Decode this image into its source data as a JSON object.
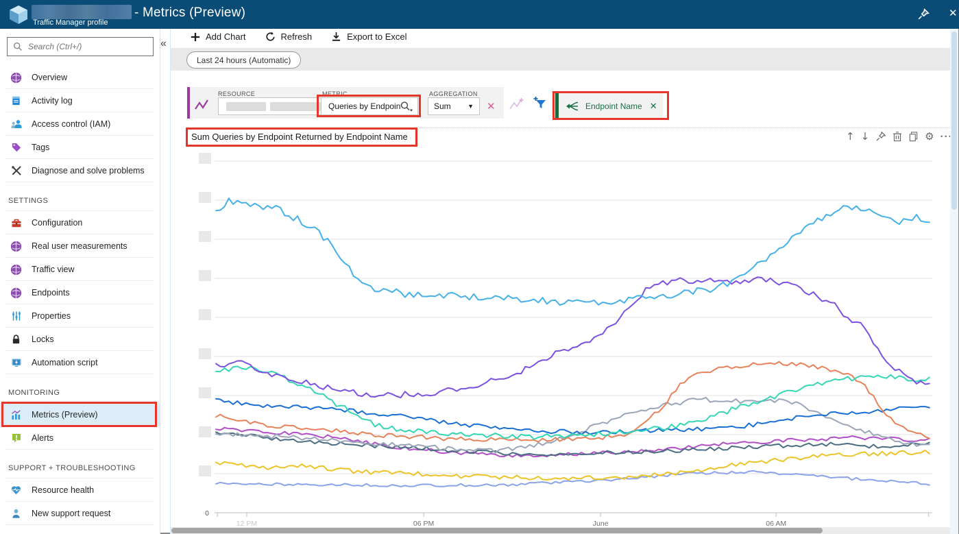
{
  "window": {
    "resource_name": "[redacted]",
    "resource_type": "Traffic Manager profile",
    "page_title": "- Metrics (Preview)"
  },
  "sidebar": {
    "search": {
      "placeholder": "Search (Ctrl+/)"
    },
    "collapse_glyph": "«",
    "entries": [
      {
        "kind": "item",
        "icon": "globe-purple",
        "label": "Overview"
      },
      {
        "kind": "item",
        "icon": "activity-log",
        "label": "Activity log"
      },
      {
        "kind": "item",
        "icon": "access-control",
        "label": "Access control (IAM)"
      },
      {
        "kind": "item",
        "icon": "tag",
        "label": "Tags"
      },
      {
        "kind": "item",
        "icon": "diagnose",
        "label": "Diagnose and solve problems"
      },
      {
        "kind": "header",
        "label": "SETTINGS"
      },
      {
        "kind": "item",
        "icon": "toolbox",
        "label": "Configuration"
      },
      {
        "kind": "item",
        "icon": "globe-purple",
        "label": "Real user measurements"
      },
      {
        "kind": "item",
        "icon": "globe-purple",
        "label": "Traffic view"
      },
      {
        "kind": "item",
        "icon": "globe-purple",
        "label": "Endpoints"
      },
      {
        "kind": "item",
        "icon": "sliders",
        "label": "Properties"
      },
      {
        "kind": "item",
        "icon": "lock",
        "label": "Locks"
      },
      {
        "kind": "item",
        "icon": "automation",
        "label": "Automation script"
      },
      {
        "kind": "header",
        "label": "MONITORING"
      },
      {
        "kind": "item",
        "icon": "metrics",
        "label": "Metrics (Preview)",
        "selected": true,
        "annotated": true
      },
      {
        "kind": "item",
        "icon": "alert",
        "label": "Alerts"
      },
      {
        "kind": "header",
        "label": "SUPPORT + TROUBLESHOOTING"
      },
      {
        "kind": "item",
        "icon": "health",
        "label": "Resource health"
      },
      {
        "kind": "item",
        "icon": "support",
        "label": "New support request"
      }
    ]
  },
  "toolbar": {
    "buttons": [
      {
        "icon": "plus",
        "label": "Add Chart"
      },
      {
        "icon": "refresh",
        "label": "Refresh"
      },
      {
        "icon": "export",
        "label": "Export to Excel"
      }
    ]
  },
  "time_range": {
    "label": "Last 24 hours (Automatic)"
  },
  "metric_builder": {
    "resource": {
      "label": "RESOURCE",
      "value_redacted": true
    },
    "metric": {
      "label": "METRIC",
      "value": "Queries by Endpoint...",
      "annotated": true
    },
    "aggregation": {
      "label": "AGGREGATION",
      "value": "Sum"
    },
    "remove_glyph": "✕",
    "grouping": {
      "label": "Endpoint Name",
      "remove_glyph": "✕",
      "annotated": true
    }
  },
  "chart_header": {
    "title": "Sum Queries by Endpoint Returned by Endpoint Name",
    "annotated": true,
    "actions": [
      "move-up",
      "move-down",
      "pin",
      "delete",
      "copy",
      "settings",
      "more"
    ]
  },
  "chart_data": {
    "type": "line",
    "title": "Sum Queries by Endpoint Returned by Endpoint Name",
    "x_axis": {
      "ticks": [
        {
          "t": 0.002,
          "label": ""
        },
        {
          "t": 0.043,
          "label": "12 PM",
          "muted": true
        },
        {
          "t": 0.29,
          "label": "06 PM"
        },
        {
          "t": 0.537,
          "label": "June"
        },
        {
          "t": 0.782,
          "label": "06 AM"
        },
        {
          "t": 0.995,
          "label": ""
        }
      ],
      "range": "Last 24 hours"
    },
    "y_axis": {
      "origin_label": "0",
      "gridline_count": 9,
      "tick_labels_redacted": true,
      "note": "series values below are in gridline units (0 = baseline)"
    },
    "legend": "none",
    "series": [
      {
        "name": "light-blue",
        "color": "#45b1e8",
        "wiggle": 0.09,
        "points": [
          [
            0,
            7.68
          ],
          [
            0.019,
            8.0
          ],
          [
            0.048,
            7.85
          ],
          [
            0.081,
            7.8
          ],
          [
            0.105,
            7.6
          ],
          [
            0.134,
            7.3
          ],
          [
            0.163,
            6.85
          ],
          [
            0.191,
            6.1
          ],
          [
            0.22,
            5.75
          ],
          [
            0.263,
            5.6
          ],
          [
            0.321,
            5.55
          ],
          [
            0.388,
            5.5
          ],
          [
            0.455,
            5.42
          ],
          [
            0.521,
            5.35
          ],
          [
            0.588,
            5.5
          ],
          [
            0.646,
            5.6
          ],
          [
            0.703,
            5.75
          ],
          [
            0.751,
            6.3
          ],
          [
            0.799,
            6.95
          ],
          [
            0.842,
            7.5
          ],
          [
            0.876,
            7.8
          ],
          [
            0.914,
            7.72
          ],
          [
            0.947,
            7.42
          ],
          [
            0.976,
            7.55
          ],
          [
            1,
            7.45
          ]
        ]
      },
      {
        "name": "violet",
        "color": "#7b52e0",
        "wiggle": 0.08,
        "points": [
          [
            0,
            3.74
          ],
          [
            0.033,
            3.85
          ],
          [
            0.077,
            3.55
          ],
          [
            0.12,
            3.35
          ],
          [
            0.167,
            3.15
          ],
          [
            0.223,
            2.98
          ],
          [
            0.292,
            3.05
          ],
          [
            0.359,
            3.25
          ],
          [
            0.421,
            3.55
          ],
          [
            0.464,
            4.0
          ],
          [
            0.519,
            4.35
          ],
          [
            0.565,
            5.0
          ],
          [
            0.608,
            5.85
          ],
          [
            0.655,
            5.95
          ],
          [
            0.713,
            5.9
          ],
          [
            0.761,
            6.0
          ],
          [
            0.804,
            5.8
          ],
          [
            0.832,
            5.6
          ],
          [
            0.861,
            5.35
          ],
          [
            0.885,
            4.95
          ],
          [
            0.909,
            4.7
          ],
          [
            0.933,
            3.9
          ],
          [
            0.957,
            3.55
          ],
          [
            0.976,
            3.3
          ],
          [
            1,
            3.4
          ]
        ]
      },
      {
        "name": "turquoise",
        "color": "#35d6b4",
        "wiggle": 0.07,
        "points": [
          [
            0,
            3.65
          ],
          [
            0.033,
            3.72
          ],
          [
            0.081,
            3.6
          ],
          [
            0.115,
            3.3
          ],
          [
            0.148,
            3.0
          ],
          [
            0.172,
            2.75
          ],
          [
            0.196,
            2.5
          ],
          [
            0.23,
            2.2
          ],
          [
            0.297,
            2.05
          ],
          [
            0.368,
            1.98
          ],
          [
            0.445,
            1.93
          ],
          [
            0.521,
            2.0
          ],
          [
            0.598,
            2.1
          ],
          [
            0.665,
            2.3
          ],
          [
            0.732,
            2.7
          ],
          [
            0.799,
            3.1
          ],
          [
            0.861,
            3.4
          ],
          [
            0.923,
            3.5
          ],
          [
            0.971,
            3.42
          ],
          [
            1,
            3.45
          ]
        ]
      },
      {
        "name": "orange",
        "color": "#e8825a",
        "wiggle": 0.06,
        "points": [
          [
            0,
            2.5
          ],
          [
            0.038,
            2.32
          ],
          [
            0.1,
            2.2
          ],
          [
            0.158,
            2.12
          ],
          [
            0.225,
            1.98
          ],
          [
            0.321,
            1.9
          ],
          [
            0.416,
            1.86
          ],
          [
            0.512,
            1.9
          ],
          [
            0.579,
            1.98
          ],
          [
            0.617,
            2.6
          ],
          [
            0.655,
            3.4
          ],
          [
            0.699,
            3.7
          ],
          [
            0.746,
            3.8
          ],
          [
            0.794,
            3.82
          ],
          [
            0.842,
            3.72
          ],
          [
            0.876,
            3.6
          ],
          [
            0.902,
            3.35
          ],
          [
            0.928,
            2.7
          ],
          [
            0.952,
            2.25
          ],
          [
            0.976,
            2.0
          ],
          [
            1,
            1.95
          ]
        ]
      },
      {
        "name": "royal-blue",
        "color": "#1a6fd4",
        "wiggle": 0.06,
        "points": [
          [
            0,
            2.86
          ],
          [
            0.062,
            2.74
          ],
          [
            0.129,
            2.68
          ],
          [
            0.196,
            2.6
          ],
          [
            0.273,
            2.44
          ],
          [
            0.349,
            2.26
          ],
          [
            0.426,
            2.12
          ],
          [
            0.512,
            2.06
          ],
          [
            0.608,
            2.1
          ],
          [
            0.703,
            2.16
          ],
          [
            0.77,
            2.28
          ],
          [
            0.828,
            2.48
          ],
          [
            0.885,
            2.56
          ],
          [
            0.943,
            2.64
          ],
          [
            1,
            2.7
          ]
        ]
      },
      {
        "name": "light-gray",
        "color": "#9aa6b8",
        "wiggle": 0.06,
        "points": [
          [
            0,
            2.02
          ],
          [
            0.1,
            1.94
          ],
          [
            0.206,
            1.8
          ],
          [
            0.311,
            1.66
          ],
          [
            0.388,
            1.58
          ],
          [
            0.464,
            1.78
          ],
          [
            0.541,
            2.3
          ],
          [
            0.608,
            2.7
          ],
          [
            0.675,
            2.9
          ],
          [
            0.742,
            2.85
          ],
          [
            0.799,
            2.86
          ],
          [
            0.856,
            2.45
          ],
          [
            0.904,
            2.1
          ],
          [
            0.952,
            1.8
          ],
          [
            1,
            1.72
          ]
        ]
      },
      {
        "name": "slate",
        "color": "#4a6d82",
        "wiggle": 0.05,
        "points": [
          [
            0,
            2.06
          ],
          [
            0.081,
            1.9
          ],
          [
            0.177,
            1.76
          ],
          [
            0.273,
            1.66
          ],
          [
            0.368,
            1.55
          ],
          [
            0.464,
            1.5
          ],
          [
            0.56,
            1.55
          ],
          [
            0.655,
            1.6
          ],
          [
            0.751,
            1.68
          ],
          [
            0.847,
            1.76
          ],
          [
            0.923,
            1.7
          ],
          [
            1,
            1.78
          ]
        ]
      },
      {
        "name": "magenta",
        "color": "#b14fc8",
        "wiggle": 0.05,
        "points": [
          [
            0,
            2.16
          ],
          [
            0.081,
            2.05
          ],
          [
            0.158,
            1.95
          ],
          [
            0.234,
            1.72
          ],
          [
            0.321,
            1.55
          ],
          [
            0.416,
            1.46
          ],
          [
            0.512,
            1.5
          ],
          [
            0.608,
            1.6
          ],
          [
            0.703,
            1.75
          ],
          [
            0.799,
            1.85
          ],
          [
            0.895,
            1.92
          ],
          [
            1,
            1.85
          ]
        ]
      },
      {
        "name": "gold",
        "color": "#ecc428",
        "wiggle": 0.06,
        "points": [
          [
            0,
            1.3
          ],
          [
            0.062,
            1.14
          ],
          [
            0.129,
            1.2
          ],
          [
            0.196,
            1.05
          ],
          [
            0.273,
            1.0
          ],
          [
            0.368,
            0.92
          ],
          [
            0.464,
            0.88
          ],
          [
            0.56,
            0.9
          ],
          [
            0.655,
            1.05
          ],
          [
            0.751,
            1.3
          ],
          [
            0.847,
            1.45
          ],
          [
            0.923,
            1.52
          ],
          [
            1,
            1.55
          ]
        ]
      },
      {
        "name": "periwinkle",
        "color": "#8ba3e8",
        "wiggle": 0.035,
        "points": [
          [
            0,
            0.76
          ],
          [
            0.129,
            0.72
          ],
          [
            0.273,
            0.7
          ],
          [
            0.416,
            0.72
          ],
          [
            0.56,
            0.85
          ],
          [
            0.655,
            1.0
          ],
          [
            0.751,
            1.05
          ],
          [
            0.828,
            0.95
          ],
          [
            0.904,
            0.85
          ],
          [
            1,
            0.73
          ]
        ]
      }
    ]
  },
  "colors": {
    "annotation": "#e8352a",
    "titlebar": "#0b4c77",
    "accent_purple": "#963f9f",
    "accent_green": "#1a6b3c",
    "selected_item_bg": "#dcedf8"
  }
}
